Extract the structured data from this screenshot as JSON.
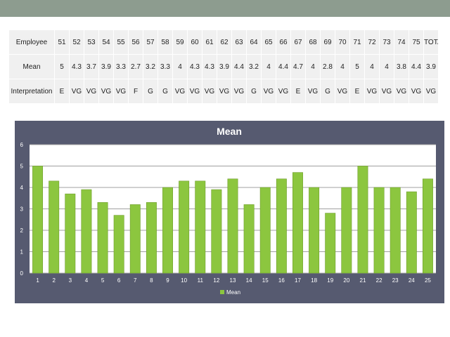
{
  "table": {
    "header_label": "Employee",
    "columns": [
      "51",
      "52",
      "53",
      "54",
      "55",
      "56",
      "57",
      "58",
      "59",
      "60",
      "61",
      "62",
      "63",
      "64",
      "65",
      "66",
      "67",
      "68",
      "69",
      "70",
      "71",
      "72",
      "73",
      "74",
      "75",
      "TOTAL"
    ],
    "rows": [
      {
        "label": "Mean",
        "values": [
          "5",
          "4.3",
          "3.7",
          "3.9",
          "3.3",
          "2.7",
          "3.2",
          "3.3",
          "4",
          "4.3",
          "4.3",
          "3.9",
          "4.4",
          "3.2",
          "4",
          "4.4",
          "4.7",
          "4",
          "2.8",
          "4",
          "5",
          "4",
          "4",
          "3.8",
          "4.4",
          "3.9"
        ]
      },
      {
        "label": "Interpretation",
        "values": [
          "E",
          "VG",
          "VG",
          "VG",
          "VG",
          "F",
          "G",
          "G",
          "VG",
          "VG",
          "VG",
          "VG",
          "VG",
          "G",
          "VG",
          "VG",
          "E",
          "VG",
          "G",
          "VG",
          "E",
          "VG",
          "VG",
          "VG",
          "VG",
          "VG"
        ]
      }
    ]
  },
  "chart_data": {
    "type": "bar",
    "title": "Mean",
    "categories": [
      "1",
      "2",
      "3",
      "4",
      "5",
      "6",
      "7",
      "8",
      "9",
      "10",
      "11",
      "12",
      "13",
      "14",
      "15",
      "16",
      "17",
      "18",
      "19",
      "20",
      "21",
      "22",
      "23",
      "24",
      "25"
    ],
    "series": [
      {
        "name": "Mean",
        "values": [
          5,
          4.3,
          3.7,
          3.9,
          3.3,
          2.7,
          3.2,
          3.3,
          4,
          4.3,
          4.3,
          3.9,
          4.4,
          3.2,
          4,
          4.4,
          4.7,
          4,
          2.8,
          4,
          5,
          4,
          4,
          3.8,
          4.4
        ]
      }
    ],
    "ylim": [
      0,
      6
    ],
    "yticks": [
      0,
      1,
      2,
      3,
      4,
      5,
      6
    ],
    "grid": true,
    "legend": "bottom",
    "colors": {
      "bar": "#8cc63f",
      "bar_edge": "#6f9e2c",
      "background": "#565a70",
      "plot_area": "#ffffff",
      "gridline": "#a0a0a0",
      "text": "#ffffff"
    }
  }
}
